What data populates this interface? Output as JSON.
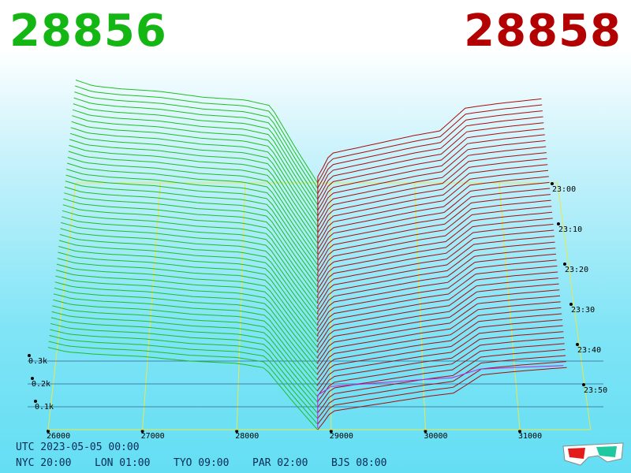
{
  "prices": {
    "bid": "28856",
    "ask": "28858"
  },
  "footer": {
    "utc": "UTC 2023-05-05 00:00",
    "timezones": [
      "NYC 20:00",
      "LON 01:00",
      "TYO 09:00",
      "PAR 02:00",
      "BJS 08:00"
    ]
  },
  "colors": {
    "bid": "#13b613",
    "ask": "#b30000",
    "bid_line": "#1fbf1f",
    "ask_line": "#a80d0d",
    "grid": "#e8e84a",
    "baseline": "#c020e0"
  },
  "icons": {
    "glasses": "3d-glasses-icon"
  },
  "chart_data": {
    "type": "area",
    "description_type": "3d-depth-chart",
    "x_ticks": [
      26000,
      27000,
      28000,
      29000,
      30000,
      31000
    ],
    "x_tick_labels": [
      "26000",
      "27000",
      "28000",
      "29000",
      "30000",
      "31000"
    ],
    "y_ticks": [
      "0.1k",
      "0.2k",
      "0.3k"
    ],
    "time_ticks": [
      "23:00",
      "23:10",
      "23:20",
      "23:30",
      "23:40",
      "23:50"
    ],
    "bid_price": 28856,
    "ask_price": 28858,
    "bid_side": {
      "price": [
        26000,
        26200,
        26500,
        27000,
        27500,
        28000,
        28300,
        28600,
        28856
      ],
      "depth": [
        0.36,
        0.34,
        0.33,
        0.32,
        0.3,
        0.29,
        0.27,
        0.12,
        0.0
      ]
    },
    "ask_side": {
      "price": [
        28858,
        28950,
        29000,
        29500,
        30000,
        30300,
        30600,
        31000,
        31500
      ],
      "depth": [
        0.0,
        0.03,
        0.05,
        0.07,
        0.09,
        0.1,
        0.15,
        0.16,
        0.17
      ]
    }
  }
}
